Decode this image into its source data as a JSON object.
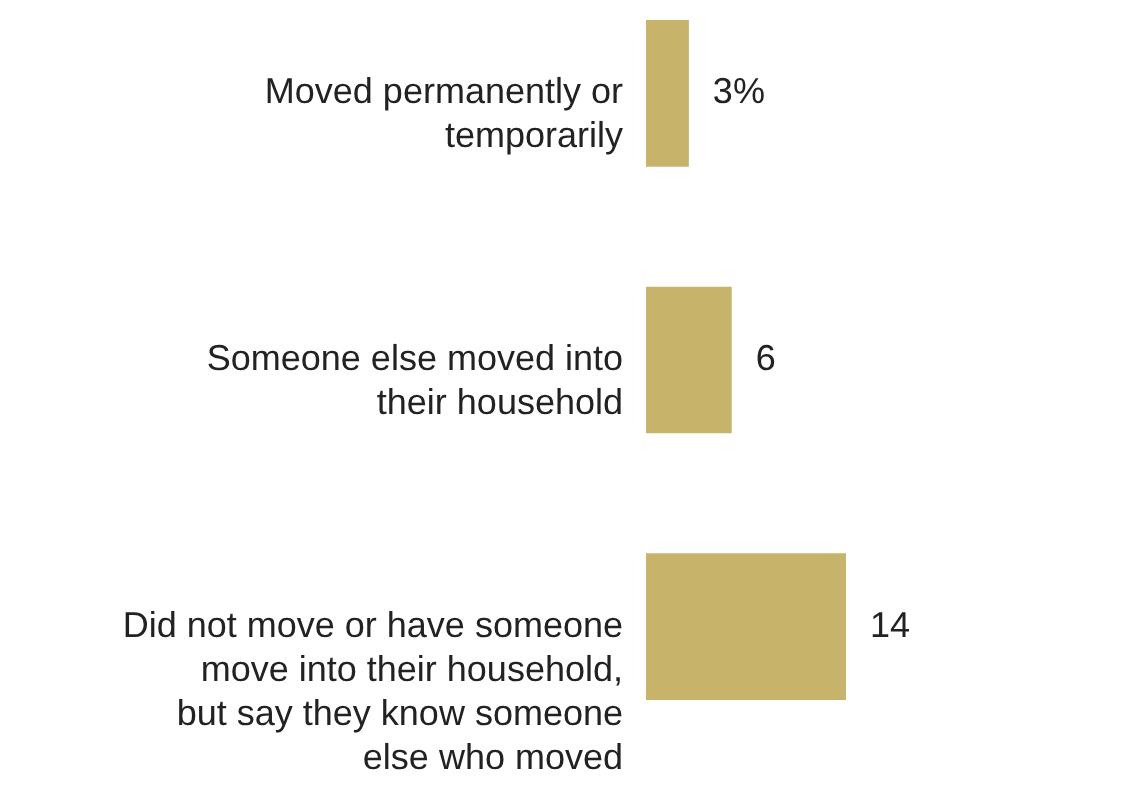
{
  "chart_data": {
    "type": "bar",
    "orientation": "horizontal",
    "categories": [
      "Moved permanently or temporarily",
      "Someone else moved into their household",
      "Did not move or have someone move into their household, but say they know someone else who moved"
    ],
    "values": [
      3,
      6,
      14
    ],
    "value_labels": [
      "3%",
      "6",
      "14"
    ],
    "color": "#c8b36a"
  }
}
